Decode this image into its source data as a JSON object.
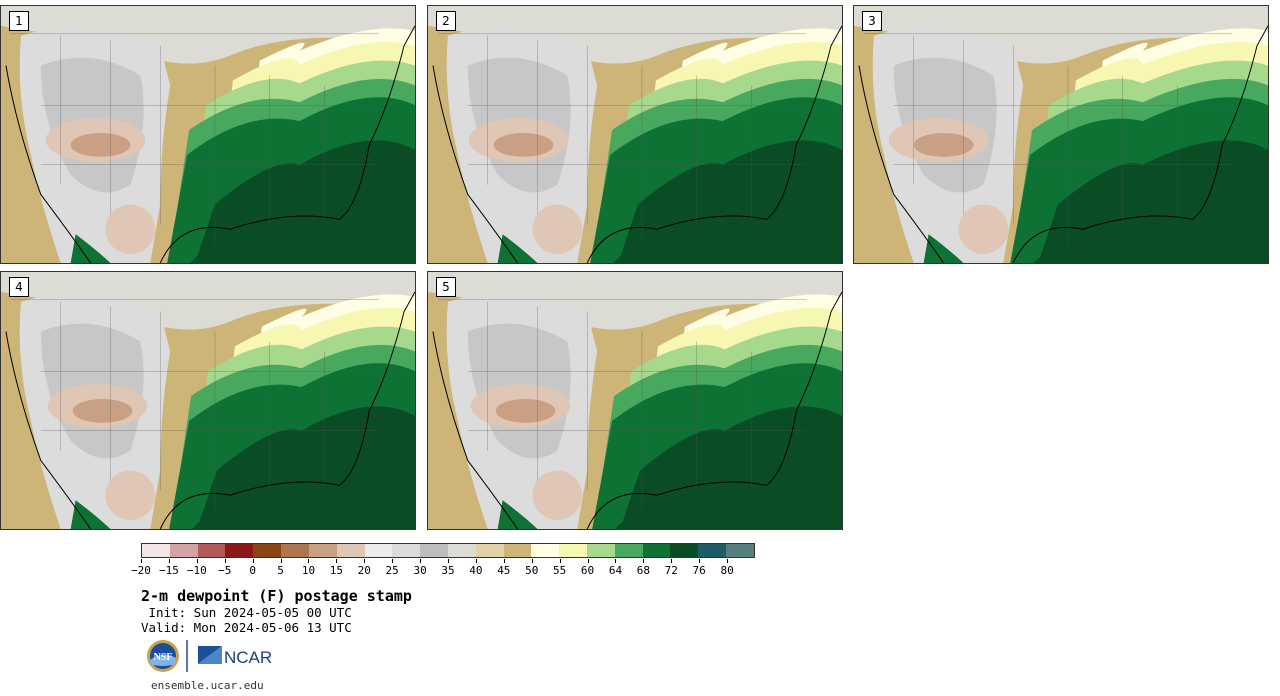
{
  "panels": [
    {
      "label": "1",
      "variant": 0
    },
    {
      "label": "2",
      "variant": 1
    },
    {
      "label": "3",
      "variant": 2
    },
    {
      "label": "4",
      "variant": 3
    },
    {
      "label": "5",
      "variant": 4
    }
  ],
  "colorbar": {
    "colors": [
      "#f4e6e6",
      "#d4a3a3",
      "#b05a5a",
      "#8c1818",
      "#8b4513",
      "#ad7650",
      "#c9a084",
      "#e0c6b4",
      "#ececec",
      "#dcdcdc",
      "#bdbdbd",
      "#dcdcd4",
      "#e2d1a5",
      "#cdb577",
      "#fffde4",
      "#f7f7b2",
      "#a6d98c",
      "#48a95e",
      "#0e7235",
      "#0a4d25",
      "#205b68",
      "#568080"
    ],
    "tick_labels": [
      "−20",
      "−15",
      "−10",
      "−5",
      "0",
      "5",
      "10",
      "15",
      "20",
      "25",
      "30",
      "35",
      "40",
      "45",
      "50",
      "55",
      "60",
      "64",
      "68",
      "72",
      "76",
      "80"
    ]
  },
  "title": "2-m dewpoint (F) postage stamp",
  "init": " Init: Sun 2024-05-05 00 UTC",
  "valid": "Valid: Mon 2024-05-06 13 UTC",
  "logos": {
    "nsf": "NSF",
    "ncar": "NCAR"
  },
  "site": "ensemble.ucar.edu"
}
